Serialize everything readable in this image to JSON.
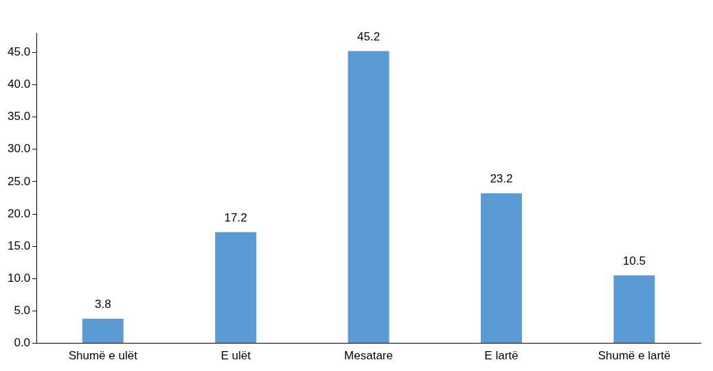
{
  "chart_data": {
    "type": "bar",
    "categories": [
      "Shumë e ulët",
      "E ulët",
      "Mesatare",
      "E lartë",
      "Shumë e lartë"
    ],
    "values": [
      3.8,
      17.2,
      45.2,
      23.2,
      10.5
    ],
    "color": "#5b9bd5",
    "ylim": [
      0,
      48
    ],
    "yticks": [
      {
        "value": 0,
        "label": "0.0"
      },
      {
        "value": 5,
        "label": "5.0"
      },
      {
        "value": 10,
        "label": "10.0"
      },
      {
        "value": 15,
        "label": "15.0"
      },
      {
        "value": 20,
        "label": "20.0"
      },
      {
        "value": 25,
        "label": "25.0"
      },
      {
        "value": 30,
        "label": "30.0"
      },
      {
        "value": 35,
        "label": "35.0"
      },
      {
        "value": 40,
        "label": "40.0"
      },
      {
        "value": 45,
        "label": "45.0"
      }
    ],
    "data_labels": true,
    "grid": false,
    "legend": false
  }
}
